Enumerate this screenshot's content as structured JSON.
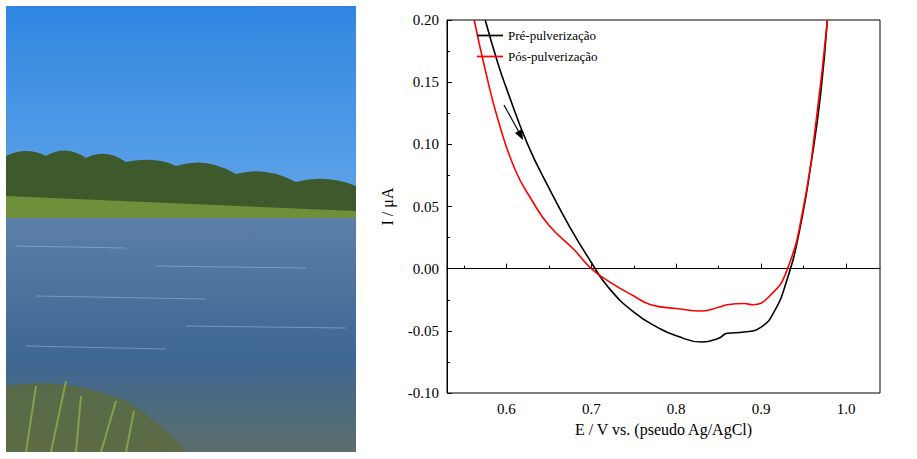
{
  "chart_data": {
    "type": "line",
    "x_label": "E / V vs. (pseudo Ag/AgCl)",
    "y_label": "I / μA",
    "xlim": [
      0.53,
      1.04
    ],
    "xticks": [
      {
        "value": 0.6,
        "label": "0.6"
      },
      {
        "value": 0.7,
        "label": "0.7"
      },
      {
        "value": 0.8,
        "label": "0.8"
      },
      {
        "value": 0.9,
        "label": "0.9"
      },
      {
        "value": 1.0,
        "label": "1.0"
      }
    ],
    "ylim": [
      -0.1,
      0.2
    ],
    "yticks": [
      {
        "value": -0.1,
        "label": "-0.10"
      },
      {
        "value": -0.05,
        "label": "-0.05"
      },
      {
        "value": 0,
        "label": "0.00"
      },
      {
        "value": 0.05,
        "label": "0.05"
      },
      {
        "value": 0.1,
        "label": "0.10"
      },
      {
        "value": 0.15,
        "label": "0.15"
      },
      {
        "value": 0.2,
        "label": "0.20"
      }
    ],
    "grid": false,
    "legend": "top-left",
    "series": [
      {
        "name": "Pré-pulverização",
        "color": "#000000",
        "x": [
          0.575,
          0.59,
          0.6,
          0.625,
          0.65,
          0.675,
          0.7,
          0.72,
          0.75,
          0.78,
          0.8,
          0.83,
          0.85,
          0.86,
          0.88,
          0.9,
          0.915,
          0.93,
          0.945,
          0.96,
          0.97,
          0.978
        ],
        "values": [
          0.2,
          0.165,
          0.145,
          0.1,
          0.065,
          0.033,
          0.005,
          -0.015,
          -0.035,
          -0.048,
          -0.054,
          -0.059,
          -0.056,
          -0.052,
          -0.051,
          -0.047,
          -0.035,
          -0.01,
          0.03,
          0.09,
          0.14,
          0.2
        ]
      },
      {
        "name": "Pós-pulverização",
        "color": "#ff0000",
        "x": [
          0.562,
          0.575,
          0.59,
          0.61,
          0.63,
          0.65,
          0.68,
          0.7,
          0.72,
          0.75,
          0.77,
          0.8,
          0.83,
          0.85,
          0.86,
          0.88,
          0.89,
          0.91,
          0.93,
          0.95,
          0.965,
          0.978
        ],
        "values": [
          0.2,
          0.16,
          0.12,
          0.08,
          0.055,
          0.035,
          0.015,
          0.0,
          -0.01,
          -0.022,
          -0.029,
          -0.032,
          -0.034,
          -0.031,
          -0.029,
          -0.028,
          -0.029,
          -0.022,
          -0.002,
          0.05,
          0.12,
          0.2
        ]
      }
    ]
  }
}
